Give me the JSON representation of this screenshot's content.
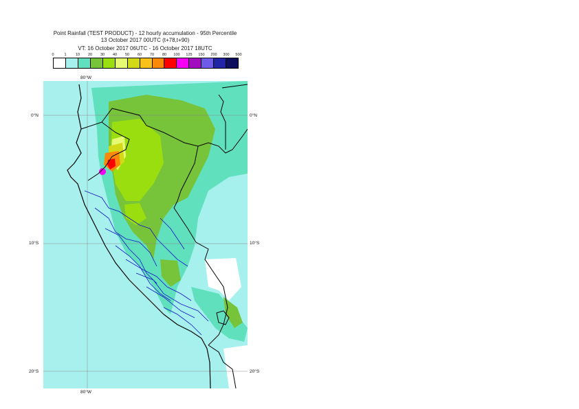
{
  "title": {
    "line1": "Point Rainfall (TEST PRODUCT) - 12 hourly accumulation - 95th Percentile",
    "line2": "13 October 2017 00UTC (t+78,t+90)",
    "line3": "VT: 16 October 2017 06UTC - 16 October 2017 18UTC"
  },
  "legend": {
    "ticks": [
      "0",
      "1",
      "10",
      "20",
      "30",
      "40",
      "50",
      "60",
      "70",
      "80",
      "100",
      "125",
      "150",
      "200",
      "300",
      "500"
    ],
    "colors": [
      "#ffffff",
      "#a6f1ee",
      "#60e0bd",
      "#77c33a",
      "#9bde10",
      "#e7fb72",
      "#d2d916",
      "#f8c21b",
      "#fb8909",
      "#ff0000",
      "#f500f4",
      "#a20dbd",
      "#6e5be9",
      "#2226a6",
      "#0d0f5c"
    ]
  },
  "map": {
    "colors": {
      "ocean": "#a8f0ee",
      "land_low": "#a6f1ee",
      "land_mid": "#60e0bd",
      "green": "#77c33a",
      "yellowgreen": "#9bde10",
      "yellow": "#e7fb72",
      "olive": "#d2d916",
      "orange": "#fb8909",
      "red": "#ff0000",
      "magenta": "#f500f4",
      "coast": "#000000",
      "admin": "#1414c8",
      "grid": "#888888"
    },
    "axis_labels": {
      "top_lon": "80°W",
      "bottom_lon": "80°W",
      "lat_0_left": "0°N",
      "lat_0_right": "0°N",
      "lat_10_left": "10°S",
      "lat_10_right": "10°S",
      "lat_20_left": "20°S",
      "lat_20_right": "20°S"
    }
  }
}
